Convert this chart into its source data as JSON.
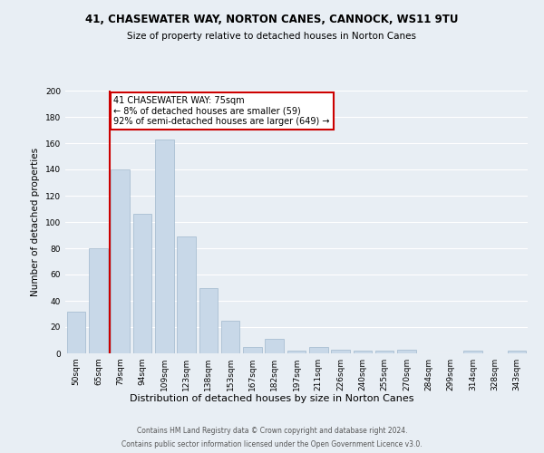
{
  "title1": "41, CHASEWATER WAY, NORTON CANES, CANNOCK, WS11 9TU",
  "title2": "Size of property relative to detached houses in Norton Canes",
  "xlabel": "Distribution of detached houses by size in Norton Canes",
  "ylabel": "Number of detached properties",
  "footer1": "Contains HM Land Registry data © Crown copyright and database right 2024.",
  "footer2": "Contains public sector information licensed under the Open Government Licence v3.0.",
  "bar_labels": [
    "50sqm",
    "65sqm",
    "79sqm",
    "94sqm",
    "109sqm",
    "123sqm",
    "138sqm",
    "153sqm",
    "167sqm",
    "182sqm",
    "197sqm",
    "211sqm",
    "226sqm",
    "240sqm",
    "255sqm",
    "270sqm",
    "284sqm",
    "299sqm",
    "314sqm",
    "328sqm",
    "343sqm"
  ],
  "bar_values": [
    32,
    80,
    140,
    106,
    163,
    89,
    50,
    25,
    5,
    11,
    2,
    5,
    3,
    2,
    2,
    3,
    0,
    0,
    2,
    0,
    2
  ],
  "bar_color": "#c8d8e8",
  "bar_edge_color": "#a0b8cc",
  "background_color": "#e8eef4",
  "grid_color": "#ffffff",
  "property_line_x": 1.5,
  "annotation_text1": "41 CHASEWATER WAY: 75sqm",
  "annotation_text2": "← 8% of detached houses are smaller (59)",
  "annotation_text3": "92% of semi-detached houses are larger (649) →",
  "annotation_box_color": "#ffffff",
  "annotation_border_color": "#cc0000",
  "property_line_color": "#cc0000",
  "ylim": [
    0,
    200
  ],
  "yticks": [
    0,
    20,
    40,
    60,
    80,
    100,
    120,
    140,
    160,
    180,
    200
  ]
}
